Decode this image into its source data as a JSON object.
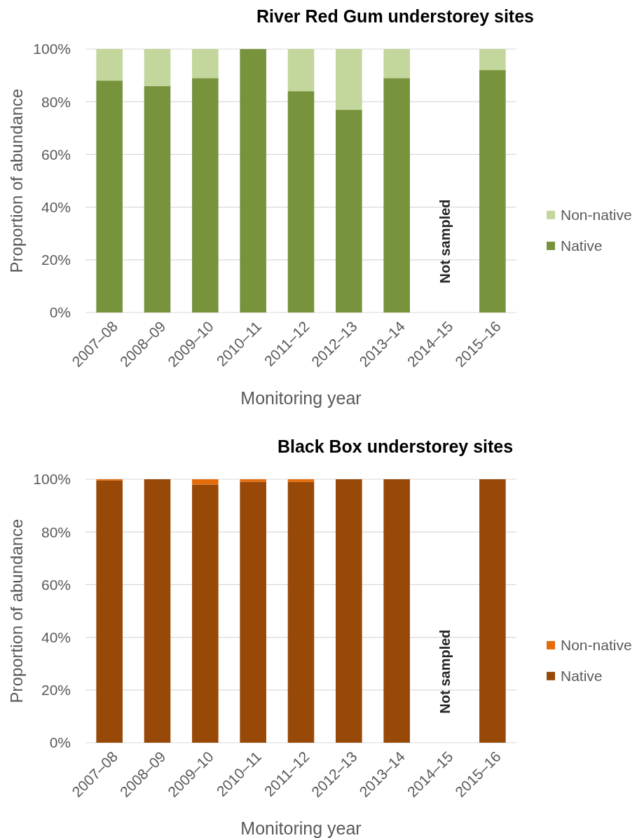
{
  "chart_data": [
    {
      "type": "bar",
      "title": "River Red Gum understorey sites",
      "xlabel": "Monitoring year",
      "ylabel": "Proportion of abundance",
      "categories": [
        "2007–08",
        "2008–09",
        "2009–10",
        "2010–11",
        "2011–12",
        "2012–13",
        "2013–14",
        "2014–15",
        "2015–16"
      ],
      "stacked": true,
      "series": [
        {
          "name": "Native",
          "color": "#77933c",
          "values": [
            88,
            86,
            89,
            100,
            84,
            77,
            89,
            null,
            92
          ]
        },
        {
          "name": "Non-native",
          "color": "#c3d69b",
          "values": [
            12,
            14,
            11,
            0,
            16,
            23,
            11,
            null,
            8
          ]
        }
      ],
      "ylim": [
        0,
        100
      ],
      "yticks": [
        {
          "value": 0,
          "label": "0%"
        },
        {
          "value": 20,
          "label": "20%"
        },
        {
          "value": 40,
          "label": "40%"
        },
        {
          "value": 60,
          "label": "60%"
        },
        {
          "value": 80,
          "label": "80%"
        },
        {
          "value": 100,
          "label": "100%"
        }
      ],
      "grid": "y",
      "legend": "right",
      "annotations": [
        "Not sampled"
      ]
    },
    {
      "type": "bar",
      "title": "Black Box understorey sites",
      "xlabel": "Monitoring year",
      "ylabel": "Proportion of abundance",
      "categories": [
        "2007–08",
        "2008–09",
        "2009–10",
        "2010–11",
        "2011–12",
        "2012–13",
        "2013–14",
        "2014–15",
        "2015–16"
      ],
      "stacked": true,
      "series": [
        {
          "name": "Native",
          "color": "#984807",
          "values": [
            99.5,
            100,
            98,
            99,
            99,
            100,
            100,
            null,
            100
          ]
        },
        {
          "name": "Non-native",
          "color": "#e46c0a",
          "values": [
            0.5,
            0,
            2,
            1,
            1,
            0,
            0,
            null,
            0
          ]
        }
      ],
      "ylim": [
        0,
        100
      ],
      "yticks": [
        {
          "value": 0,
          "label": "0%"
        },
        {
          "value": 20,
          "label": "20%"
        },
        {
          "value": 40,
          "label": "40%"
        },
        {
          "value": 60,
          "label": "60%"
        },
        {
          "value": 80,
          "label": "80%"
        },
        {
          "value": 100,
          "label": "100%"
        }
      ],
      "grid": "y",
      "legend": "right",
      "annotations": [
        "Not sampled"
      ]
    }
  ]
}
